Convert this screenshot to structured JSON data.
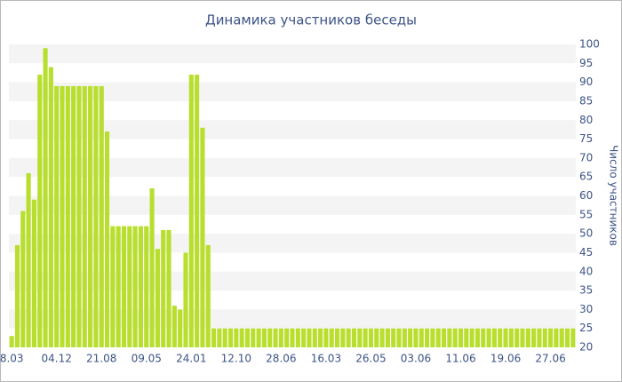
{
  "chart_data": {
    "type": "bar",
    "title": "Динамика участников беседы",
    "y_label": "Число участников",
    "categories": [
      "8.03",
      null,
      null,
      null,
      null,
      null,
      null,
      null,
      "04.12",
      null,
      null,
      null,
      null,
      null,
      null,
      null,
      "21.08",
      null,
      null,
      null,
      null,
      null,
      null,
      null,
      "09.05",
      null,
      null,
      null,
      null,
      null,
      null,
      null,
      "24.01",
      null,
      null,
      null,
      null,
      null,
      null,
      null,
      "12.10",
      null,
      null,
      null,
      null,
      null,
      null,
      null,
      "28.06",
      null,
      null,
      null,
      null,
      null,
      null,
      null,
      "16.03",
      null,
      null,
      null,
      null,
      null,
      null,
      null,
      "26.05",
      null,
      null,
      null,
      null,
      null,
      null,
      null,
      "03.06",
      null,
      null,
      null,
      null,
      null,
      null,
      null,
      "11.06",
      null,
      null,
      null,
      null,
      null,
      null,
      null,
      "19.06",
      null,
      null,
      null,
      null,
      null,
      null,
      null,
      "27.06",
      null,
      null,
      null,
      null
    ],
    "values": [
      23,
      47,
      56,
      66,
      59,
      92,
      99,
      94,
      89,
      89,
      89,
      89,
      89,
      89,
      89,
      89,
      89,
      77,
      52,
      52,
      52,
      52,
      52,
      52,
      52,
      62,
      46,
      51,
      51,
      31,
      30,
      45,
      92,
      92,
      78,
      47,
      25,
      25,
      25,
      25,
      25,
      25,
      25,
      25,
      25,
      25,
      25,
      25,
      25,
      25,
      25,
      25,
      25,
      25,
      25,
      25,
      25,
      25,
      25,
      25,
      25,
      25,
      25,
      25,
      25,
      25,
      25,
      25,
      25,
      25,
      25,
      25,
      25,
      25,
      25,
      25,
      25,
      25,
      25,
      25,
      25,
      25,
      25,
      25,
      25,
      25,
      25,
      25,
      25,
      25,
      25,
      25,
      25,
      25,
      25,
      25,
      25,
      25,
      25,
      25,
      25
    ],
    "color": "#b8de2e",
    "ylim": [
      20,
      100
    ],
    "yticks": [
      20,
      25,
      30,
      35,
      40,
      45,
      50,
      55,
      60,
      65,
      70,
      75,
      80,
      85,
      90,
      95,
      100
    ],
    "y_axis_side": "right",
    "grid_bands": true
  }
}
